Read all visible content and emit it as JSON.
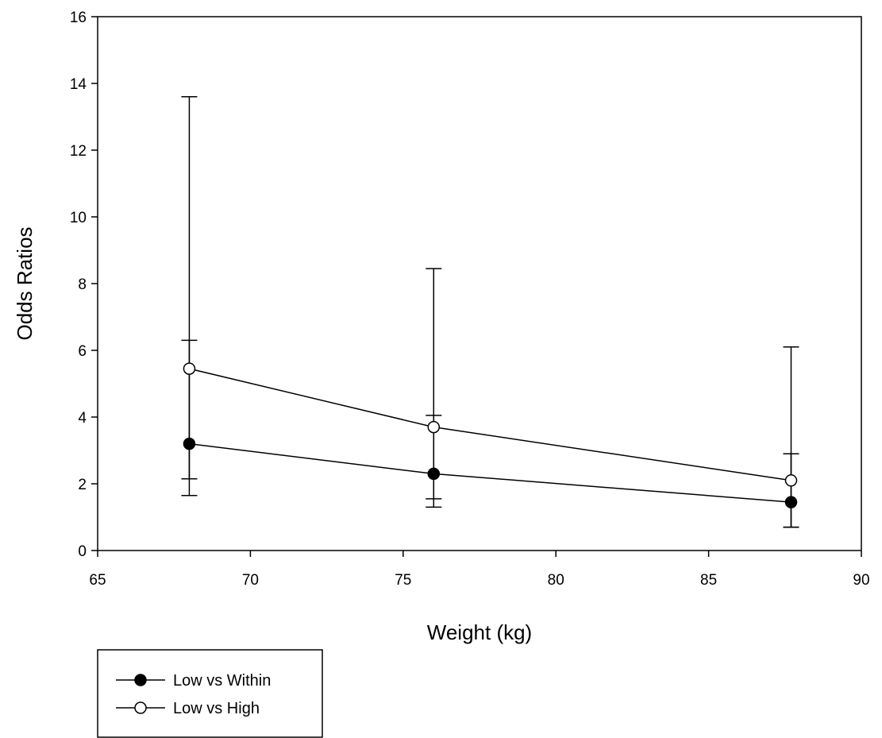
{
  "chart_data": {
    "type": "line",
    "xlabel": "Weight (kg)",
    "ylabel": "Odds Ratios",
    "xlim": [
      65,
      90
    ],
    "ylim": [
      0,
      16
    ],
    "xticks": [
      65,
      70,
      75,
      80,
      85,
      90
    ],
    "yticks": [
      0,
      2,
      4,
      6,
      8,
      10,
      12,
      14,
      16
    ],
    "grid": false,
    "legend_position": "bottom-left, below the plot",
    "error_bars": true,
    "series": [
      {
        "name": "Low vs Within",
        "marker": "filled-circle",
        "color": "#000000",
        "x": [
          68,
          76,
          87.7
        ],
        "y": [
          3.2,
          2.3,
          1.45
        ],
        "lower": [
          1.65,
          1.3,
          0.7
        ],
        "upper": [
          6.3,
          4.05,
          2.9
        ]
      },
      {
        "name": "Low vs High",
        "marker": "open-circle",
        "color": "#000000",
        "x": [
          68,
          76,
          87.7
        ],
        "y": [
          5.45,
          3.7,
          2.1
        ],
        "lower": [
          2.15,
          1.55,
          0.7
        ],
        "upper": [
          13.6,
          8.45,
          6.1
        ]
      }
    ]
  }
}
